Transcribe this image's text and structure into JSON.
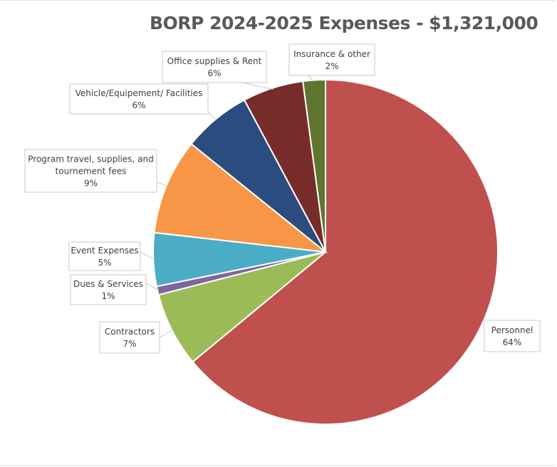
{
  "chart_data": {
    "type": "pie",
    "title": "BORP 2024-2025 Expenses - $1,321,000",
    "slices": [
      {
        "label_lines": [
          "Personnel",
          "64%"
        ],
        "value": 64,
        "color": "#C0504D"
      },
      {
        "label_lines": [
          "Contractors",
          "7%"
        ],
        "value": 7,
        "color": "#9BBB59"
      },
      {
        "label_lines": [
          "Dues & Services",
          "1%"
        ],
        "value": 0.8,
        "color": "#8064A2"
      },
      {
        "label_lines": [
          "Event Expenses",
          "5%"
        ],
        "value": 5,
        "color": "#4BACC6"
      },
      {
        "label_lines": [
          "Program travel, supplies, and",
          "tournement fees",
          "9%"
        ],
        "value": 9,
        "color": "#F79646"
      },
      {
        "label_lines": [
          "Vehicle/Equipement/ Facilities",
          "6%"
        ],
        "value": 6.4,
        "color": "#2B4C7E"
      },
      {
        "label_lines": [
          "Office supplies & Rent",
          "6%"
        ],
        "value": 5.7,
        "color": "#772C2A"
      },
      {
        "label_lines": [
          "Insurance & other",
          "2%"
        ],
        "value": 2.1,
        "color": "#5F7530"
      }
    ],
    "start_angle_deg": 0,
    "direction": "clockwise"
  }
}
